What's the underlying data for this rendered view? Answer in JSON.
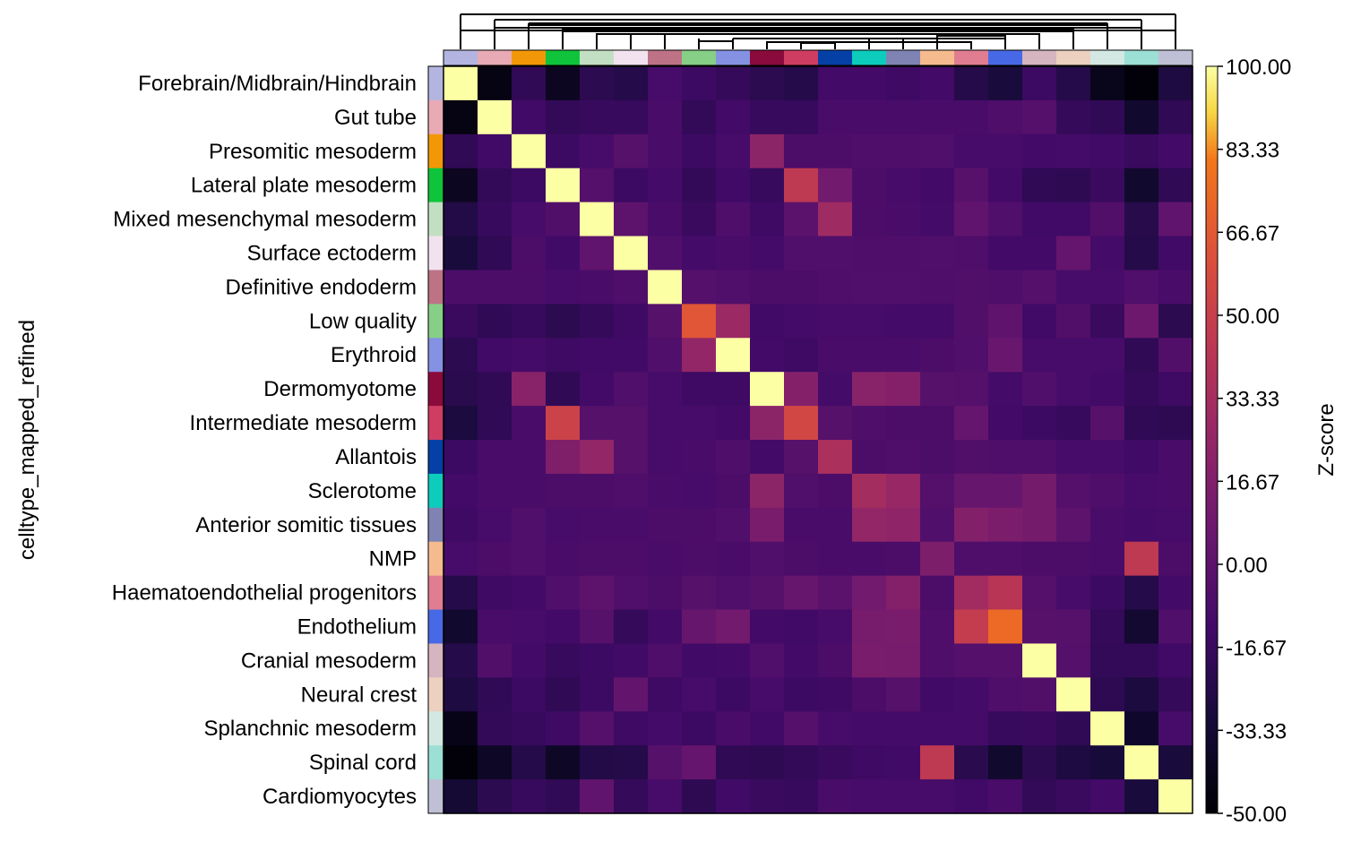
{
  "chart_data": {
    "type": "heatmap",
    "ylabel": "celltype_mapped_refined",
    "rows": [
      "Forebrain/Midbrain/Hindbrain",
      "Gut tube",
      "Presomitic mesoderm",
      "Lateral plate mesoderm",
      "Mixed mesenchymal mesoderm",
      "Surface ectoderm",
      "Definitive endoderm",
      "Low quality",
      "Erythroid",
      "Dermomyotome",
      "Intermediate mesoderm",
      "Allantois",
      "Sclerotome",
      "Anterior somitic tissues",
      "NMP",
      "Haematoendothelial progenitors",
      "Endothelium",
      "Cranial mesoderm",
      "Neural crest",
      "Splanchnic mesoderm",
      "Spinal cord",
      "Cardiomyocytes"
    ],
    "row_colors": [
      "#b3b5e0",
      "#e8aab5",
      "#f29808",
      "#0fc43a",
      "#c3dfc3",
      "#f2e2f0",
      "#bd7286",
      "#86cf86",
      "#8591e2",
      "#8b0a3c",
      "#cf3d63",
      "#0540a6",
      "#0dccbc",
      "#7f83b3",
      "#f5bb8f",
      "#e07d90",
      "#4869e5",
      "#d5b5c0",
      "#ecd0c0",
      "#d3e8e2",
      "#9bdfd5",
      "#bfc0d6"
    ],
    "col_colors": [
      "#b3b5e0",
      "#e8aab5",
      "#f29808",
      "#0fc43a",
      "#c3dfc3",
      "#f2e2f0",
      "#bd7286",
      "#86cf86",
      "#8591e2",
      "#8b0a3c",
      "#cf3d63",
      "#0540a6",
      "#0dccbc",
      "#7f83b3",
      "#f5bb8f",
      "#e07d90",
      "#4869e5",
      "#d5b5c0",
      "#ecd0c0",
      "#d3e8e2",
      "#9bdfd5",
      "#bfc0d6"
    ],
    "values": [
      [
        100,
        -45,
        -20,
        -40,
        -22,
        -25,
        -10,
        -15,
        -18,
        -22,
        -25,
        -12,
        -12,
        -14,
        -12,
        -25,
        -30,
        -15,
        -25,
        -42,
        -48,
        -28
      ],
      [
        -45,
        100,
        -13,
        -19,
        -17,
        -17,
        -9,
        -19,
        -12,
        -17,
        -17,
        -9,
        -9,
        -9,
        -9,
        -9,
        -7,
        -4,
        -18,
        -20,
        -35,
        -20
      ],
      [
        -20,
        -13,
        100,
        -15,
        -10,
        -3,
        -9,
        -15,
        -10,
        22,
        -8,
        -8,
        -7,
        -7,
        -6,
        -10,
        -10,
        -12,
        -11,
        -13,
        -16,
        -12
      ],
      [
        -40,
        -19,
        -15,
        100,
        -4,
        -15,
        -11,
        -19,
        -13,
        -17,
        45,
        10,
        -8,
        -10,
        -12,
        -2,
        -12,
        -20,
        -21,
        -16,
        -35,
        -20
      ],
      [
        -26,
        -17,
        -10,
        -5,
        100,
        0,
        -9,
        -16,
        -7,
        -14,
        -1,
        30,
        -8,
        -9,
        -11,
        2,
        -6,
        -13,
        -13,
        -5,
        -24,
        2
      ],
      [
        -30,
        -20,
        -8,
        -13,
        2,
        100,
        -6,
        -11,
        -9,
        -11,
        -6,
        -6,
        -7,
        -7,
        -6,
        -7,
        -12,
        -12,
        4,
        -11,
        -25,
        -13
      ],
      [
        -8,
        -8,
        -8,
        -10,
        -9,
        -7,
        100,
        -4,
        -6,
        -8,
        -8,
        -7,
        -6,
        -6,
        -7,
        -5,
        -7,
        -4,
        -10,
        -10,
        -6,
        -9
      ],
      [
        -16,
        -20,
        -17,
        -22,
        -18,
        -14,
        -3,
        65,
        28,
        -13,
        -11,
        -10,
        -10,
        -11,
        -11,
        -5,
        1,
        -13,
        -5,
        -16,
        8,
        -22
      ],
      [
        -22,
        -13,
        -11,
        -14,
        -13,
        -13,
        -6,
        25,
        100,
        -12,
        -14,
        -9,
        -9,
        -9,
        -8,
        -6,
        6,
        -10,
        -10,
        -10,
        -20,
        -5
      ],
      [
        -23,
        -20,
        20,
        -20,
        -12,
        -6,
        -10,
        -14,
        -14,
        100,
        18,
        -11,
        20,
        18,
        -3,
        -4,
        -11,
        -6,
        -10,
        -12,
        -18,
        -14
      ],
      [
        -29,
        -20,
        -9,
        52,
        -3,
        -3,
        -10,
        -10,
        -12,
        22,
        55,
        -3,
        -7,
        -8,
        -8,
        4,
        -12,
        -15,
        -17,
        -3,
        -20,
        -21
      ],
      [
        -15,
        -9,
        -9,
        16,
        25,
        -3,
        -10,
        -9,
        -7,
        -12,
        -3,
        36,
        -8,
        -7,
        -8,
        -5,
        -7,
        -7,
        -10,
        -10,
        -13,
        -9
      ],
      [
        -12,
        -9,
        -9,
        -8,
        -8,
        -7,
        -9,
        -10,
        -8,
        22,
        -6,
        -8,
        33,
        27,
        -4,
        5,
        5,
        11,
        -4,
        -7,
        -10,
        -9
      ],
      [
        -14,
        -10,
        -6,
        -10,
        -9,
        -9,
        -8,
        -8,
        -6,
        13,
        -9,
        -9,
        25,
        23,
        -6,
        17,
        14,
        11,
        0,
        -9,
        -11,
        -10
      ],
      [
        -10,
        -8,
        -6,
        -9,
        -8,
        -8,
        -9,
        -8,
        -9,
        -6,
        -8,
        -9,
        -9,
        -8,
        15,
        -7,
        -7,
        -8,
        -8,
        -9,
        45,
        -8
      ],
      [
        -25,
        -14,
        -12,
        -6,
        0,
        -6,
        -8,
        -3,
        -6,
        -3,
        5,
        -1,
        10,
        18,
        -8,
        32,
        42,
        -4,
        -10,
        -15,
        -25,
        -12
      ],
      [
        -35,
        -9,
        -10,
        -12,
        -3,
        -18,
        -12,
        5,
        10,
        -12,
        -13,
        -10,
        12,
        13,
        -7,
        48,
        75,
        -2,
        -3,
        -18,
        -34,
        -6
      ],
      [
        -25,
        -5,
        -12,
        -17,
        -15,
        -13,
        -7,
        -13,
        -12,
        -6,
        -12,
        -8,
        13,
        12,
        -7,
        -4,
        -4,
        100,
        -4,
        -19,
        -19,
        -13
      ],
      [
        -28,
        -20,
        -15,
        -20,
        -15,
        3,
        -14,
        -10,
        -15,
        -10,
        -15,
        -14,
        -8,
        -3,
        -13,
        -11,
        -7,
        -5,
        100,
        -21,
        -29,
        -18
      ],
      [
        -43,
        -19,
        -17,
        -14,
        -4,
        -14,
        -11,
        -15,
        -9,
        -13,
        -4,
        -10,
        -11,
        -11,
        -11,
        -11,
        -17,
        -16,
        -20,
        100,
        -36,
        -10
      ],
      [
        -48,
        -38,
        -25,
        -38,
        -26,
        -25,
        -3,
        4,
        -20,
        -21,
        -19,
        -16,
        -14,
        -13,
        45,
        -23,
        -35,
        -22,
        -28,
        -31,
        100,
        -30
      ],
      [
        -33,
        -22,
        -17,
        -20,
        2,
        -18,
        -10,
        -21,
        -13,
        -16,
        -17,
        -9,
        -10,
        -10,
        -10,
        -13,
        -9,
        -19,
        -16,
        -12,
        -30,
        100
      ]
    ],
    "colormap": "inferno",
    "colorbar": {
      "label": "Z-score",
      "min": -50,
      "max": 100,
      "ticks": [
        "100.00",
        "83.33",
        "66.67",
        "50.00",
        "33.33",
        "16.67",
        "0.00",
        "-16.67",
        "-33.33",
        "-50.00"
      ]
    },
    "dendrogram": "top (columns)"
  }
}
